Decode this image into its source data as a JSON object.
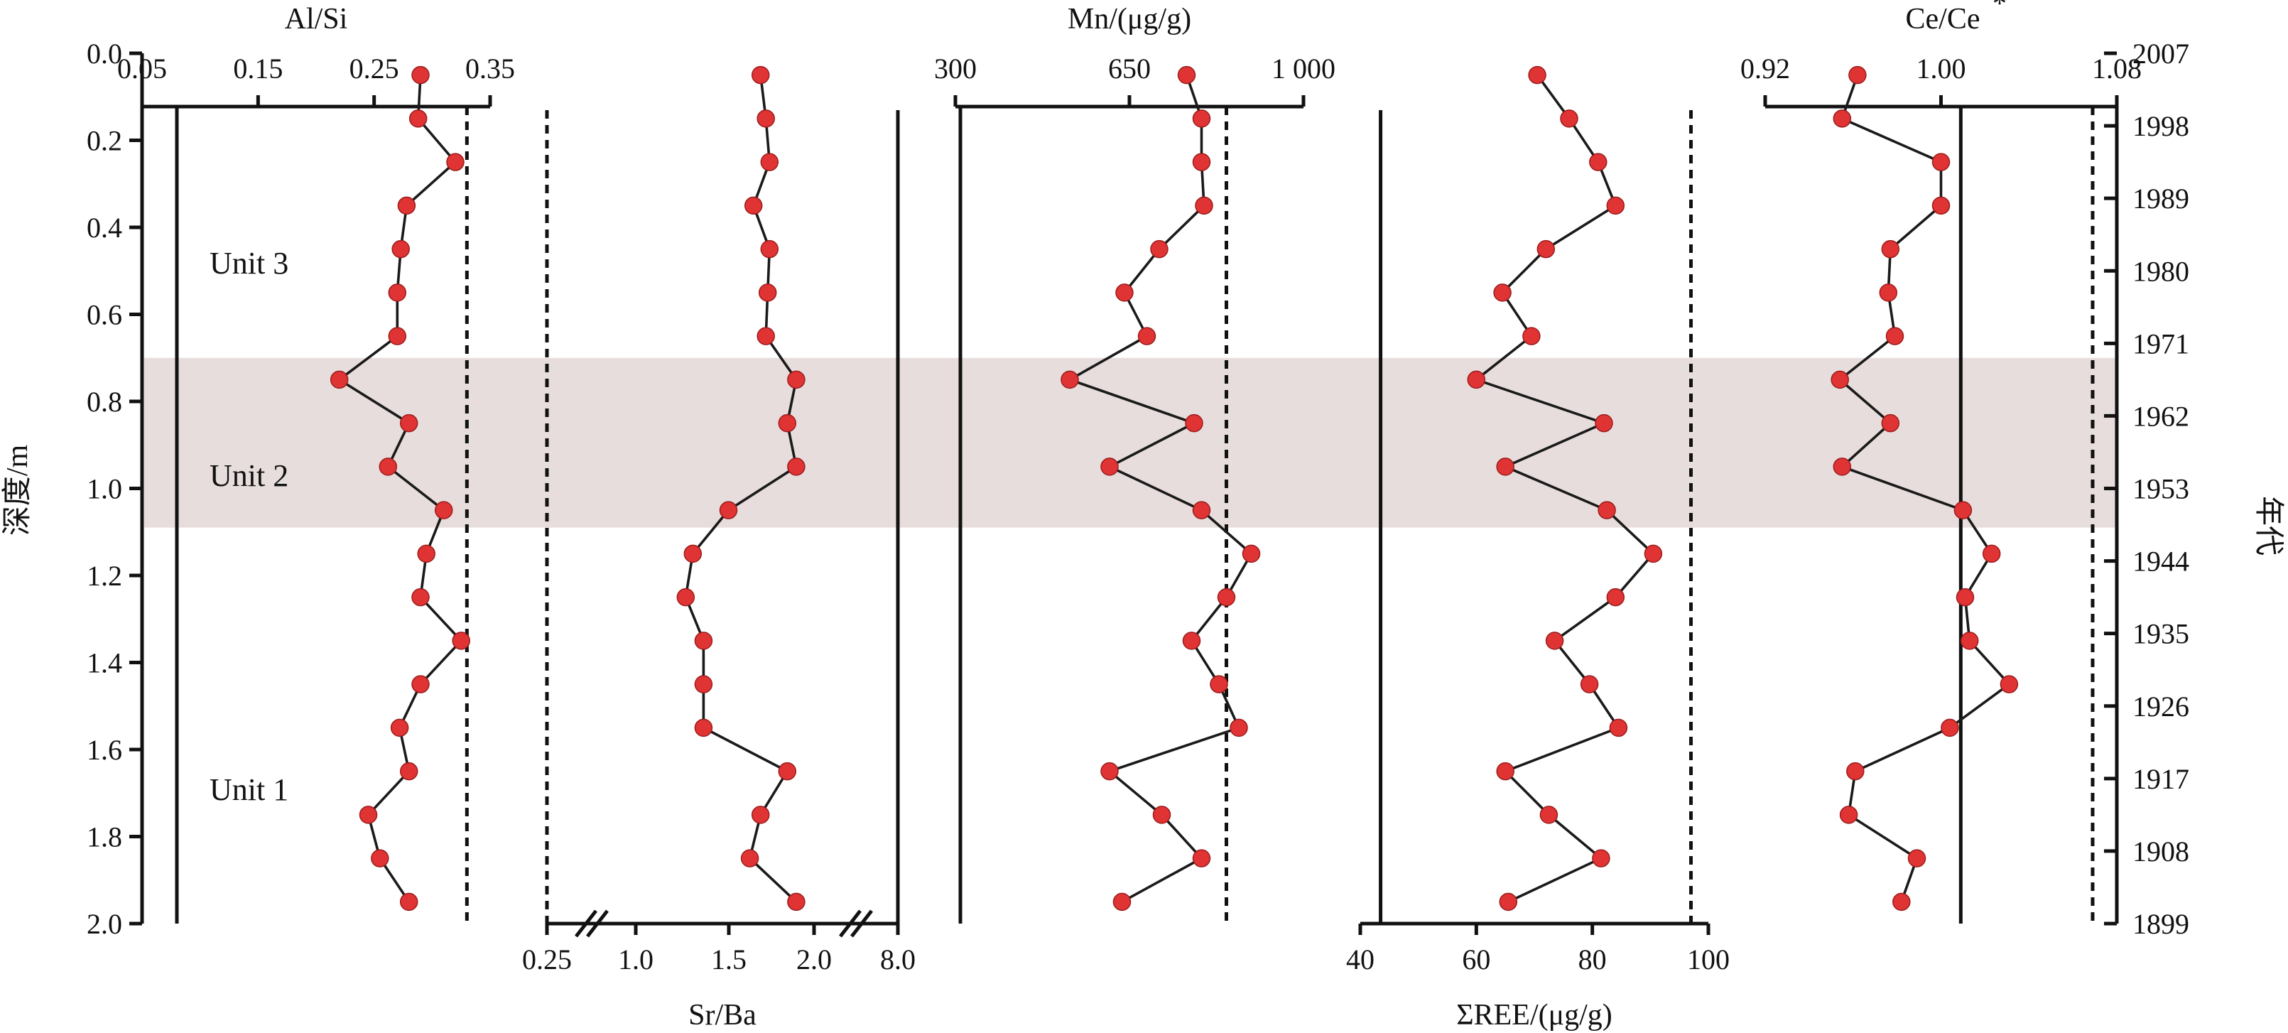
{
  "depth_axis": {
    "label": "深度/m",
    "ticks": [
      "0.0",
      "0.2",
      "0.4",
      "0.6",
      "0.8",
      "1.0",
      "1.2",
      "1.4",
      "1.6",
      "1.8",
      "2.0"
    ]
  },
  "age_axis": {
    "label": "年代",
    "ticks": [
      "2007",
      "1998",
      "1989",
      "1980",
      "1971",
      "1962",
      "1953",
      "1944",
      "1935",
      "1926",
      "1917",
      "1908",
      "1899"
    ]
  },
  "units": [
    "Unit 3",
    "Unit 2",
    "Unit 1"
  ],
  "shaded_zone": {
    "depth_range": [
      0.7,
      1.09
    ],
    "color": "#e7dddc"
  },
  "point_color": "#e03434",
  "chart_data": [
    {
      "type": "line",
      "title": "Al/Si",
      "xlim": [
        0.05,
        0.35
      ],
      "tick_labels": [
        "0.05",
        "0.15",
        "0.25",
        "0.35"
      ],
      "reference_lines": {
        "solid": 0.08,
        "dashed": 0.33
      },
      "series": [
        {
          "depth": [
            0.05,
            0.15,
            0.25,
            0.35,
            0.45,
            0.55,
            0.65,
            0.75,
            0.85,
            0.95,
            1.05,
            1.15,
            1.25,
            1.35,
            1.45,
            1.55,
            1.65,
            1.75,
            1.85,
            1.95
          ],
          "values": [
            0.29,
            0.288,
            0.32,
            0.278,
            0.273,
            0.27,
            0.27,
            0.22,
            0.28,
            0.262,
            0.31,
            0.295,
            0.29,
            0.325,
            0.29,
            0.272,
            0.28,
            0.245,
            0.255,
            0.28
          ]
        }
      ]
    },
    {
      "type": "line",
      "xlabel": "Sr/Ba",
      "tick_labels": [
        "0.25",
        "1.0",
        "1.5",
        "2.0",
        "8.0"
      ],
      "reference_lines": {
        "dashed": "0.25",
        "solid": "8.0"
      },
      "series": [
        {
          "depth": [
            0.05,
            0.15,
            0.25,
            0.35,
            0.45,
            0.55,
            0.65,
            0.75,
            0.85,
            0.95,
            1.05,
            1.15,
            1.25,
            1.35,
            1.45,
            1.55,
            1.65,
            1.75,
            1.85,
            1.95
          ],
          "values": [
            1.7,
            1.73,
            1.75,
            1.66,
            1.75,
            1.74,
            1.73,
            1.9,
            1.85,
            1.9,
            1.52,
            1.32,
            1.28,
            1.38,
            1.38,
            1.38,
            1.85,
            1.7,
            1.64,
            1.9
          ]
        }
      ]
    },
    {
      "type": "line",
      "title": "Mn/(μg/g)",
      "xlim": [
        300,
        1000
      ],
      "tick_labels": [
        "300",
        "650",
        "1 000"
      ],
      "reference_lines": {
        "solid": 310,
        "dashed": 845
      },
      "series": [
        {
          "depth": [
            0.05,
            0.15,
            0.25,
            0.35,
            0.45,
            0.55,
            0.65,
            0.75,
            0.85,
            0.95,
            1.05,
            1.15,
            1.25,
            1.35,
            1.45,
            1.55,
            1.65,
            1.75,
            1.85,
            1.95
          ],
          "values": [
            765,
            795,
            795,
            800,
            710,
            640,
            685,
            530,
            780,
            610,
            795,
            895,
            845,
            775,
            830,
            870,
            610,
            715,
            795,
            635
          ]
        }
      ]
    },
    {
      "type": "line",
      "xlabel": "ΣREE/(μg/g)",
      "xlim": [
        40,
        100
      ],
      "tick_labels": [
        "40",
        "60",
        "80",
        "100"
      ],
      "reference_lines": {
        "solid": 43.5,
        "dashed": 97
      },
      "series": [
        {
          "depth": [
            0.05,
            0.15,
            0.25,
            0.35,
            0.45,
            0.55,
            0.65,
            0.75,
            0.85,
            0.95,
            1.05,
            1.15,
            1.25,
            1.35,
            1.45,
            1.55,
            1.65,
            1.75,
            1.85,
            1.95
          ],
          "values": [
            70.5,
            76,
            81,
            84,
            72,
            64.5,
            69.5,
            60,
            82,
            65,
            82.5,
            90.5,
            84,
            73.5,
            79.5,
            84.5,
            65,
            72.5,
            81.5,
            65.5
          ]
        }
      ]
    },
    {
      "type": "line",
      "title": "Ce/Ce",
      "title_superscript": "*",
      "xlim": [
        0.92,
        1.08
      ],
      "tick_labels": [
        "0.92",
        "1.00",
        "1.08"
      ],
      "reference_lines": {
        "solid": 1.009,
        "dashed": 1.069
      },
      "series": [
        {
          "depth": [
            0.05,
            0.15,
            0.25,
            0.35,
            0.45,
            0.55,
            0.65,
            0.75,
            0.85,
            0.95,
            1.05,
            1.15,
            1.25,
            1.35,
            1.45,
            1.55,
            1.65,
            1.75,
            1.85,
            1.95
          ],
          "values": [
            0.962,
            0.955,
            1.0,
            1.0,
            0.977,
            0.976,
            0.979,
            0.954,
            0.977,
            0.955,
            1.01,
            1.023,
            1.011,
            1.013,
            1.031,
            1.004,
            0.961,
            0.958,
            0.989,
            0.982
          ]
        }
      ]
    }
  ]
}
